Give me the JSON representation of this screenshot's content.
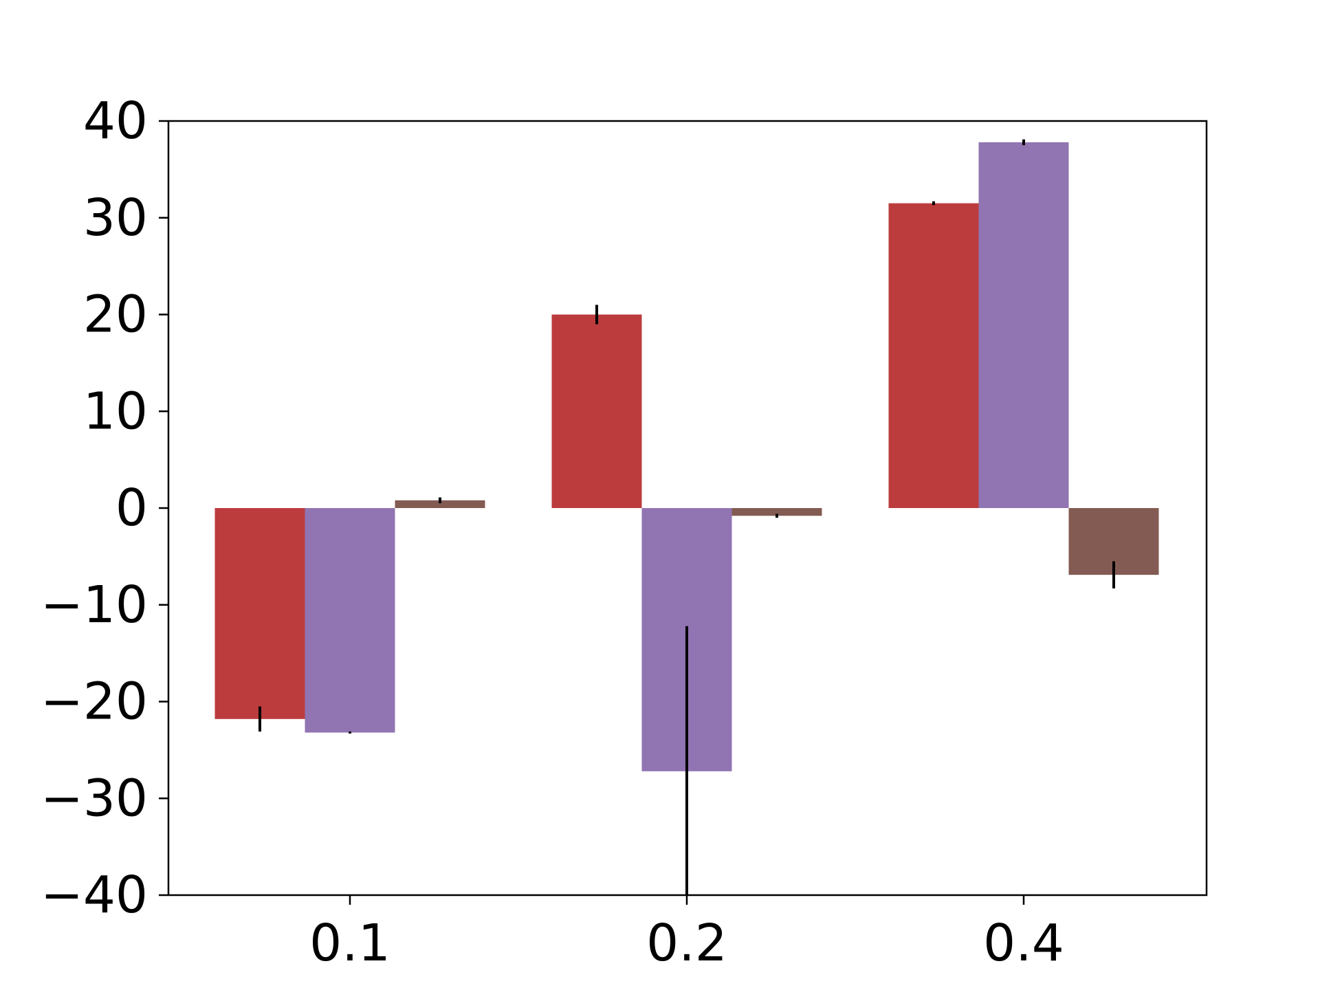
{
  "chart_data": {
    "type": "bar",
    "title": "",
    "xlabel": "",
    "ylabel": "",
    "categories": [
      "0.1",
      "0.2",
      "0.4"
    ],
    "ylim": [
      -40,
      40
    ],
    "yticks": [
      40,
      30,
      20,
      10,
      0,
      -10,
      -20,
      -30,
      -40
    ],
    "ytick_labels": [
      "40",
      "30",
      "20",
      "10",
      "0",
      "−10",
      "−20",
      "−30",
      "−40"
    ],
    "grid": false,
    "legend": "none",
    "series": [
      {
        "color": "#bc3c3e",
        "values": [
          -21.8,
          20.0,
          31.5
        ],
        "errors": [
          1.3,
          1.0,
          0.2
        ]
      },
      {
        "color": "#9174b2",
        "values": [
          -23.2,
          -27.2,
          37.8
        ],
        "errors": [
          0.1,
          15.0,
          0.3
        ]
      },
      {
        "color": "#835b53",
        "values": [
          0.8,
          -0.8,
          -6.9
        ],
        "errors": [
          0.3,
          0.2,
          1.4
        ]
      }
    ]
  }
}
